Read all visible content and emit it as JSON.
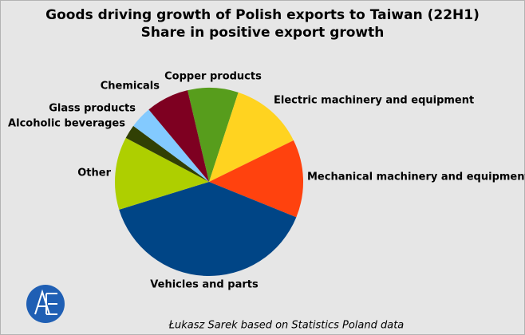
{
  "chart_data": {
    "type": "pie",
    "title": "Goods driving growth of Polish exports to Taiwan (22H1)",
    "subtitle": "Share in positive export growth",
    "source": "Łukasz Sarek based on Statistics Poland data",
    "categories": [
      "Copper products",
      "Electric machinery and equipment",
      "Mechanical machinery and equipment",
      "Vehicles and parts",
      "Other",
      "Alcoholic beverages",
      "Glass products",
      "Chemicals"
    ],
    "values": [
      8.7,
      12.7,
      13.4,
      39.1,
      12.5,
      2.4,
      3.8,
      7.4
    ],
    "colors": [
      "#579d1c",
      "#ffd320",
      "#ff420e",
      "#004586",
      "#aecf00",
      "#314004",
      "#83caff",
      "#7e0021"
    ]
  }
}
